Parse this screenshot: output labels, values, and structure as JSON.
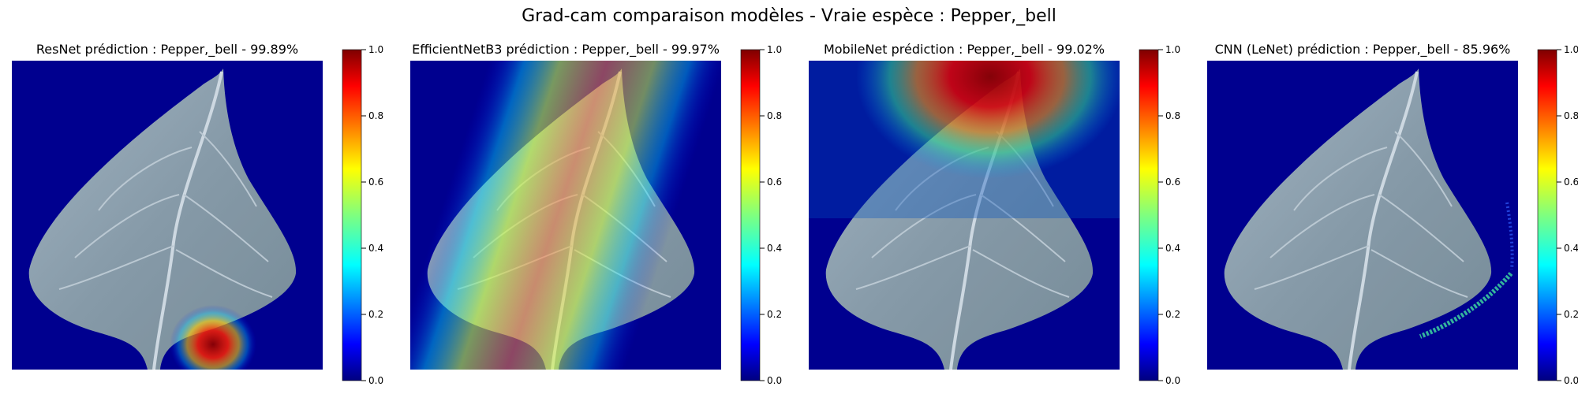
{
  "figure": {
    "title": "Grad-cam comparaison modèles - Vraie espèce : Pepper,_bell"
  },
  "colorbar": {
    "colormap": "jet",
    "ticks": [
      "0.0",
      "0.2",
      "0.4",
      "0.6",
      "0.8",
      "1.0"
    ]
  },
  "panels": [
    {
      "title": "ResNet prédiction : Pepper,_bell - 99.89%",
      "heatmap_focus": "base of leaf stem (bottom center)"
    },
    {
      "title": "EfficientNetB3 prédiction : Pepper,_bell - 99.97%",
      "heatmap_focus": "central vertical band along the midrib"
    },
    {
      "title": "MobileNet prédiction : Pepper,_bell - 99.02%",
      "heatmap_focus": "above the leaf tip (top center)"
    },
    {
      "title": "CNN (LeNet) prédiction : Pepper,_bell - 85.96%",
      "heatmap_focus": "thin streak along lower right leaf edge"
    }
  ],
  "colors": {
    "background_low": "#00008f",
    "jet_stops": [
      "#00007f",
      "#0000ff",
      "#00ffff",
      "#7fff7f",
      "#ffff00",
      "#ff0000",
      "#7f0000"
    ],
    "leaf": "#93a7ae"
  }
}
